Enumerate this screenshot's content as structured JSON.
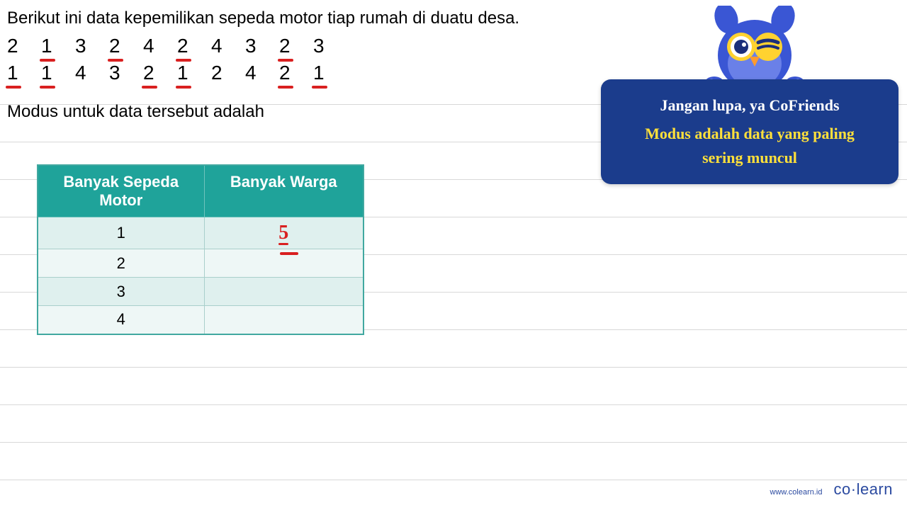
{
  "problem": {
    "intro_text": "Berikut ini data kepemilikan sepeda motor tiap rumah di duatu desa.",
    "modus_text": "Modus untuk data tersebut adalah",
    "data_rows": [
      [
        {
          "v": "2",
          "u": false
        },
        {
          "v": "1",
          "u": true
        },
        {
          "v": "3",
          "u": false
        },
        {
          "v": "2",
          "u": true
        },
        {
          "v": "4",
          "u": false
        },
        {
          "v": "2",
          "u": true
        },
        {
          "v": "4",
          "u": false
        },
        {
          "v": "3",
          "u": false
        },
        {
          "v": "2",
          "u": true
        },
        {
          "v": "3",
          "u": false
        }
      ],
      [
        {
          "v": "1",
          "u": true
        },
        {
          "v": "1",
          "u": true
        },
        {
          "v": "4",
          "u": false
        },
        {
          "v": "3",
          "u": false
        },
        {
          "v": "2",
          "u": true
        },
        {
          "v": "1",
          "u": true
        },
        {
          "v": "2",
          "u": false
        },
        {
          "v": "4",
          "u": false
        },
        {
          "v": "2",
          "u": true
        },
        {
          "v": "1",
          "u": true
        }
      ]
    ]
  },
  "table": {
    "type": "table",
    "header_bg": "#1fa39a",
    "header_color": "#ffffff",
    "cell_bg_odd": "#dff0ee",
    "cell_bg_even": "#eef7f6",
    "border_color": "#a9cfcb",
    "columns": [
      "Banyak Sepeda Motor",
      "Banyak Warga"
    ],
    "rows": [
      {
        "motor": "1",
        "warga": "5",
        "warga_handwritten": true
      },
      {
        "motor": "2",
        "warga": ""
      },
      {
        "motor": "3",
        "warga": ""
      },
      {
        "motor": "4",
        "warga": ""
      }
    ]
  },
  "callout": {
    "bg_color": "#1b3c8c",
    "line1": "Jangan lupa, ya CoFriends",
    "line1_color": "#ffffff",
    "line2": "Modus adalah data yang paling",
    "line3": "sering muncul",
    "highlight_color": "#ffe03a"
  },
  "mascot": {
    "body_color": "#3a56d4",
    "body_color_dark": "#2b3fa8",
    "glasses_color": "#ffd230",
    "beak_color": "#ff9a2e"
  },
  "annotations": {
    "red_color": "#d92020"
  },
  "footer": {
    "url": "www.colearn.id",
    "logo_text": "co·learn",
    "logo_color": "#2b4aa0"
  }
}
